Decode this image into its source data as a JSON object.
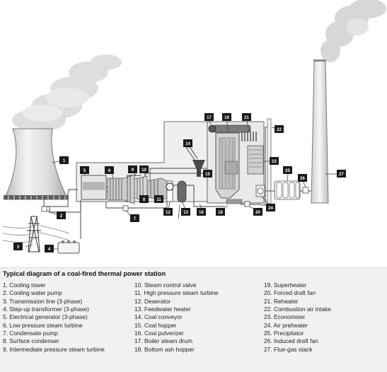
{
  "caption": "Typical diagram of a coal-fired thermal power station",
  "callout_numbers": [
    "1",
    "2",
    "3",
    "4",
    "5",
    "6",
    "7",
    "8",
    "9",
    "10",
    "11",
    "12",
    "13",
    "14",
    "15",
    "16",
    "17",
    "18",
    "19",
    "20",
    "21",
    "22",
    "23",
    "24",
    "25",
    "26",
    "27"
  ],
  "legend": {
    "col1": [
      "1. Cooling tower",
      "2. Cooling water pump",
      "3. Transmission line (3-phase)",
      "4. Step-up transformer (3-phase)",
      "5. Electrical generator (3-phase)",
      "6. Low pressure steam turbine",
      "7. Condensate pump",
      "8. Surface condenser",
      "9. Intermediate pressure steam turbine"
    ],
    "col2": [
      "10. Steam control valve",
      "11. High pressure steam turbine",
      "12. Deaerator",
      "13. Feedwater heater",
      "14. Coal conveyor",
      "15. Coal hopper",
      "16. Coal pulverizer",
      "17. Boiler steam drum",
      "18. Bottom ash hopper"
    ],
    "col3": [
      "19. Superheater",
      "20. Forced draft fan",
      "21. Reheater",
      "22. Combustion air intake",
      "23. Economiser",
      "24. Air preheater",
      "25. Precipitator",
      "26. Induced draft fan",
      "27. Flue-gas stack"
    ]
  },
  "colors": {
    "label_box": "#1a1a1a",
    "line": "#555555",
    "structure": "#ececec",
    "smoke": "#d9d9d9"
  }
}
